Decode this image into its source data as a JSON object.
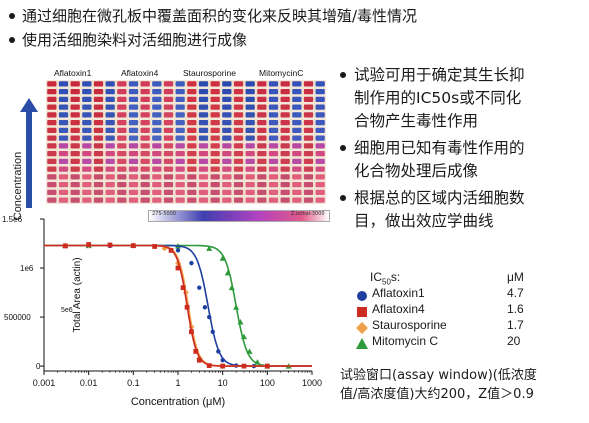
{
  "slide": {
    "top_bullets": [
      "通过细胞在微孔板中覆盖面积的变化来反映其增殖/毒性情况",
      "使用活细胞染料对活细胞进行成像"
    ],
    "right_bullets": [
      "试验可用于确定其生长抑制作用的IC50s或不同化合物产生毒性作用",
      "细胞用已知有毒性作用的化合物处理后成像",
      "根据总的区域内活细胞数目，做出效应学曲线"
    ],
    "right_bullets_lines": [
      [
        "试验可用于确定其生长抑",
        "制作用的IC50s或不同化",
        "合物产生毒性作用"
      ],
      [
        "细胞用已知有毒性作用的",
        "化合物处理后成像"
      ],
      [
        "根据总的区域内活细胞数",
        "目，做出效应学曲线"
      ]
    ],
    "bottom_note_lines": [
      "试验窗口(assay window)(低浓度",
      "值/高浓度值)大约200，Z值＞0.9"
    ]
  },
  "plate": {
    "compound_labels": [
      "Aflatoxin1",
      "Aflatoxin4",
      "Staurosporine",
      "MitomycinC"
    ],
    "axis_label": "Concentration",
    "colorbar_left": "275-5000",
    "colorbar_right": "Z.lethal-3000"
  },
  "legend": {
    "title": "IC50s:",
    "unit": "μM",
    "items": [
      {
        "name": "Aflatoxin1",
        "value": "4.7",
        "color": "#1f3fa0",
        "marker": "circle"
      },
      {
        "name": "Aflatoxin4",
        "value": "1.6",
        "color": "#cc2b1f",
        "marker": "square"
      },
      {
        "name": "Staurosporine",
        "value": "1.7",
        "color": "#f0a04a",
        "marker": "diamond"
      },
      {
        "name": "Mitomycin C",
        "value": "20",
        "color": "#2e9a3a",
        "marker": "triangle"
      }
    ]
  },
  "chart_data": {
    "type": "scatter",
    "xlabel": "Concentration (μM)",
    "ylabel": "Total Area (actin)",
    "x_scale": "log",
    "xlim": [
      0.001,
      1000
    ],
    "ylim": [
      -50000,
      1500000
    ],
    "x_ticks": [
      "0.001",
      "0.01",
      "0.1",
      "1",
      "10",
      "100",
      "1000"
    ],
    "y_ticks": [
      "0",
      "500000",
      "1e6",
      "1.5e6"
    ],
    "series": [
      {
        "name": "Aflatoxin1",
        "ic50": 4.7,
        "top": 1230000,
        "bottom": 0,
        "hill": 3.5,
        "color": "#1f3fa0",
        "x": [
          0.003,
          0.01,
          0.03,
          0.1,
          0.3,
          1,
          2,
          3,
          4,
          5,
          6,
          8,
          10,
          20,
          50,
          100
        ],
        "y": [
          1230000,
          1228000,
          1225000,
          1230000,
          1220000,
          1180000,
          1050000,
          800000,
          600000,
          500000,
          350000,
          150000,
          60000,
          5000,
          0,
          0
        ]
      },
      {
        "name": "Aflatoxin4",
        "ic50": 1.6,
        "top": 1230000,
        "bottom": 0,
        "hill": 4,
        "color": "#cc2b1f",
        "x": [
          0.003,
          0.01,
          0.03,
          0.1,
          0.3,
          0.7,
          1,
          1.3,
          1.6,
          2,
          2.5,
          3,
          5,
          10,
          30,
          100
        ],
        "y": [
          1225000,
          1240000,
          1235000,
          1228000,
          1220000,
          1180000,
          1000000,
          800000,
          600000,
          350000,
          150000,
          60000,
          5000,
          0,
          0,
          0
        ]
      },
      {
        "name": "Staurosporine",
        "ic50": 1.7,
        "top": 1230000,
        "bottom": 0,
        "hill": 4,
        "color": "#f0a04a",
        "x": [
          0.003,
          0.01,
          0.1,
          0.5,
          1,
          1.5,
          2,
          3,
          10,
          100
        ],
        "y": [
          1230000,
          1232000,
          1228000,
          1200000,
          1050000,
          750000,
          400000,
          80000,
          0,
          0
        ]
      },
      {
        "name": "Mitomycin C",
        "ic50": 20,
        "top": 1230000,
        "bottom": 0,
        "hill": 3.5,
        "color": "#2e9a3a",
        "x": [
          0.003,
          0.01,
          0.1,
          1,
          5,
          10,
          13,
          16,
          20,
          25,
          30,
          40,
          60,
          100,
          300
        ],
        "y": [
          1230000,
          1228000,
          1230000,
          1225000,
          1200000,
          1100000,
          950000,
          800000,
          600000,
          450000,
          300000,
          150000,
          40000,
          0,
          0
        ]
      }
    ]
  }
}
